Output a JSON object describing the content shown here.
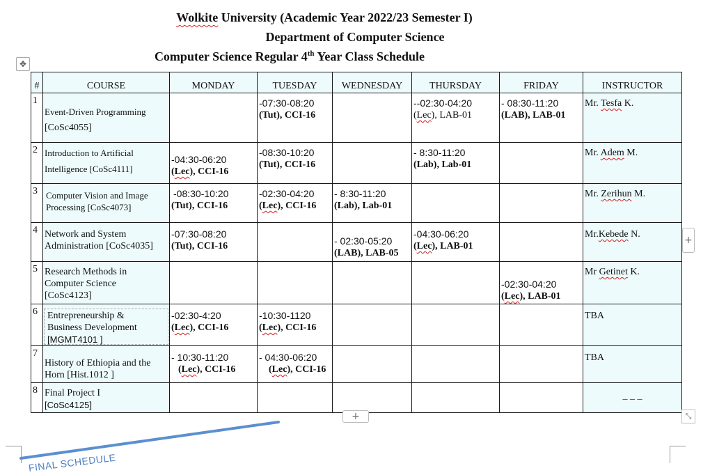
{
  "header": {
    "university_name": "Wolkite",
    "university_rest": " University (Academic Year 2022/23 Semester I)",
    "department": "Department of Computer Science",
    "schedule_title_pre": "Computer Science Regular 4",
    "schedule_title_sup": "th",
    "schedule_title_post": " Year Class Schedule"
  },
  "table": {
    "headers": {
      "num": "#",
      "course": "COURSE",
      "monday": "MONDAY",
      "tuesday": "TUESDAY",
      "wednesday": "WEDNESDAY",
      "thursday": "THURSDAY",
      "friday": "FRIDAY",
      "instructor": "INSTRUCTOR"
    },
    "rows": [
      {
        "num": "1",
        "course_name": "Event-Driven Programming",
        "course_code": "[CoSc4055]",
        "tuesday_time": "-07:30-08:20",
        "tuesday_open": "(",
        "tuesday_type": "Tut",
        "tuesday_room": "), CCI-16",
        "thursday_time": "--02:30-04:20",
        "thursday_open": "(",
        "thursday_type": "Lec",
        "thursday_room": "), LAB-01",
        "friday_time": "- 08:30-11:20",
        "friday_detail": "(LAB),  LAB-01",
        "instructor_title": "Mr. ",
        "instructor_name": "Tesfa",
        "instructor_initial": " K."
      },
      {
        "num": "2",
        "course_name": "Introduction to Artificial",
        "course_code": "Intelligence [CoSc4111]",
        "monday_time": "-04:30-06:20",
        "monday_open": "(",
        "monday_type": "Lec",
        "monday_room": "), CCI-16",
        "tuesday_time": "-08:30-10:20",
        "tuesday_detail": "(Tut), CCI-16",
        "thursday_time": "- 8:30-11:20",
        "thursday_detail": "(Lab),  Lab-01",
        "instructor_title": "Mr. ",
        "instructor_name": "Adem",
        "instructor_initial": " M."
      },
      {
        "num": "3",
        "course_name": "Computer Vision and Image",
        "course_code": "Processing [CoSc4073]",
        "monday_time": "-08:30-10:20",
        "monday_detail": "(Tut), CCI-16",
        "tuesday_time": "-02:30-04:20",
        "tuesday_open": "(",
        "tuesday_type": "Lec",
        "tuesday_room": "), CCI-16",
        "wednesday_time": "- 8:30-11:20",
        "wednesday_detail": "(Lab),  Lab-01",
        "instructor_title": "Mr. ",
        "instructor_name": "Zerihun",
        "instructor_initial": " M."
      },
      {
        "num": "4",
        "course_name": "Network and System",
        "course_code": "Administration [CoSc4035]",
        "monday_time": "-07:30-08:20",
        "monday_detail": "(Tut), CCI-16",
        "wednesday_time": "- 02:30-05:20",
        "wednesday_detail": "(LAB),  LAB-05",
        "thursday_time": "-04:30-06:20",
        "thursday_open": "(",
        "thursday_type": "Lec",
        "thursday_room": "), LAB-01",
        "instructor_title": "Mr.",
        "instructor_name": "Kebede",
        "instructor_initial": " N."
      },
      {
        "num": "5",
        "course_name": "Research Methods in",
        "course_name2": "Computer Science",
        "course_code": "[CoSc4123]",
        "friday_time": "-02:30-04:20",
        "friday_open": "(",
        "friday_type": "Lec",
        "friday_room": "), LAB-01",
        "instructor_title": "Mr ",
        "instructor_name": "Getinet",
        "instructor_initial": " K."
      },
      {
        "num": "6",
        "course_name": "Entrepreneurship &",
        "course_name2": "Business Development",
        "course_code": "[MGMT4101 ]",
        "monday_time": "-02:30-4:20",
        "monday_open": "(",
        "monday_type": "Lec",
        "monday_room": "), CCI-16",
        "tuesday_time": "-10:30-1120",
        "tuesday_open": "(",
        "tuesday_type": "Lec",
        "tuesday_room": "), CCI-16",
        "instructor": "TBA"
      },
      {
        "num": "7",
        "course_name": "History of Ethiopia and the",
        "course_code": "Horn [Hist.1012 ]",
        "monday_time": "- 10:30-11:20",
        "monday_open": "(",
        "monday_type": "Lec",
        "monday_room": "), CCI-16",
        "tuesday_time": "- 04:30-06:20",
        "tuesday_open": "(",
        "tuesday_type": "Lec",
        "tuesday_room": "), CCI-16",
        "instructor": "TBA"
      },
      {
        "num": "8",
        "course_name": "Final Project I",
        "course_code": "[CoSc4125]",
        "instructor": "_ _ _"
      }
    ]
  },
  "controls": {
    "move_icon": "four-way-arrow-icon",
    "add_column_label": "+",
    "add_row_label": "+",
    "resize_icon": "resize-diagonal-icon"
  },
  "annotation": {
    "stamp_text": "FINAL SCHEDULE",
    "line_color": "#5b8fd0"
  }
}
